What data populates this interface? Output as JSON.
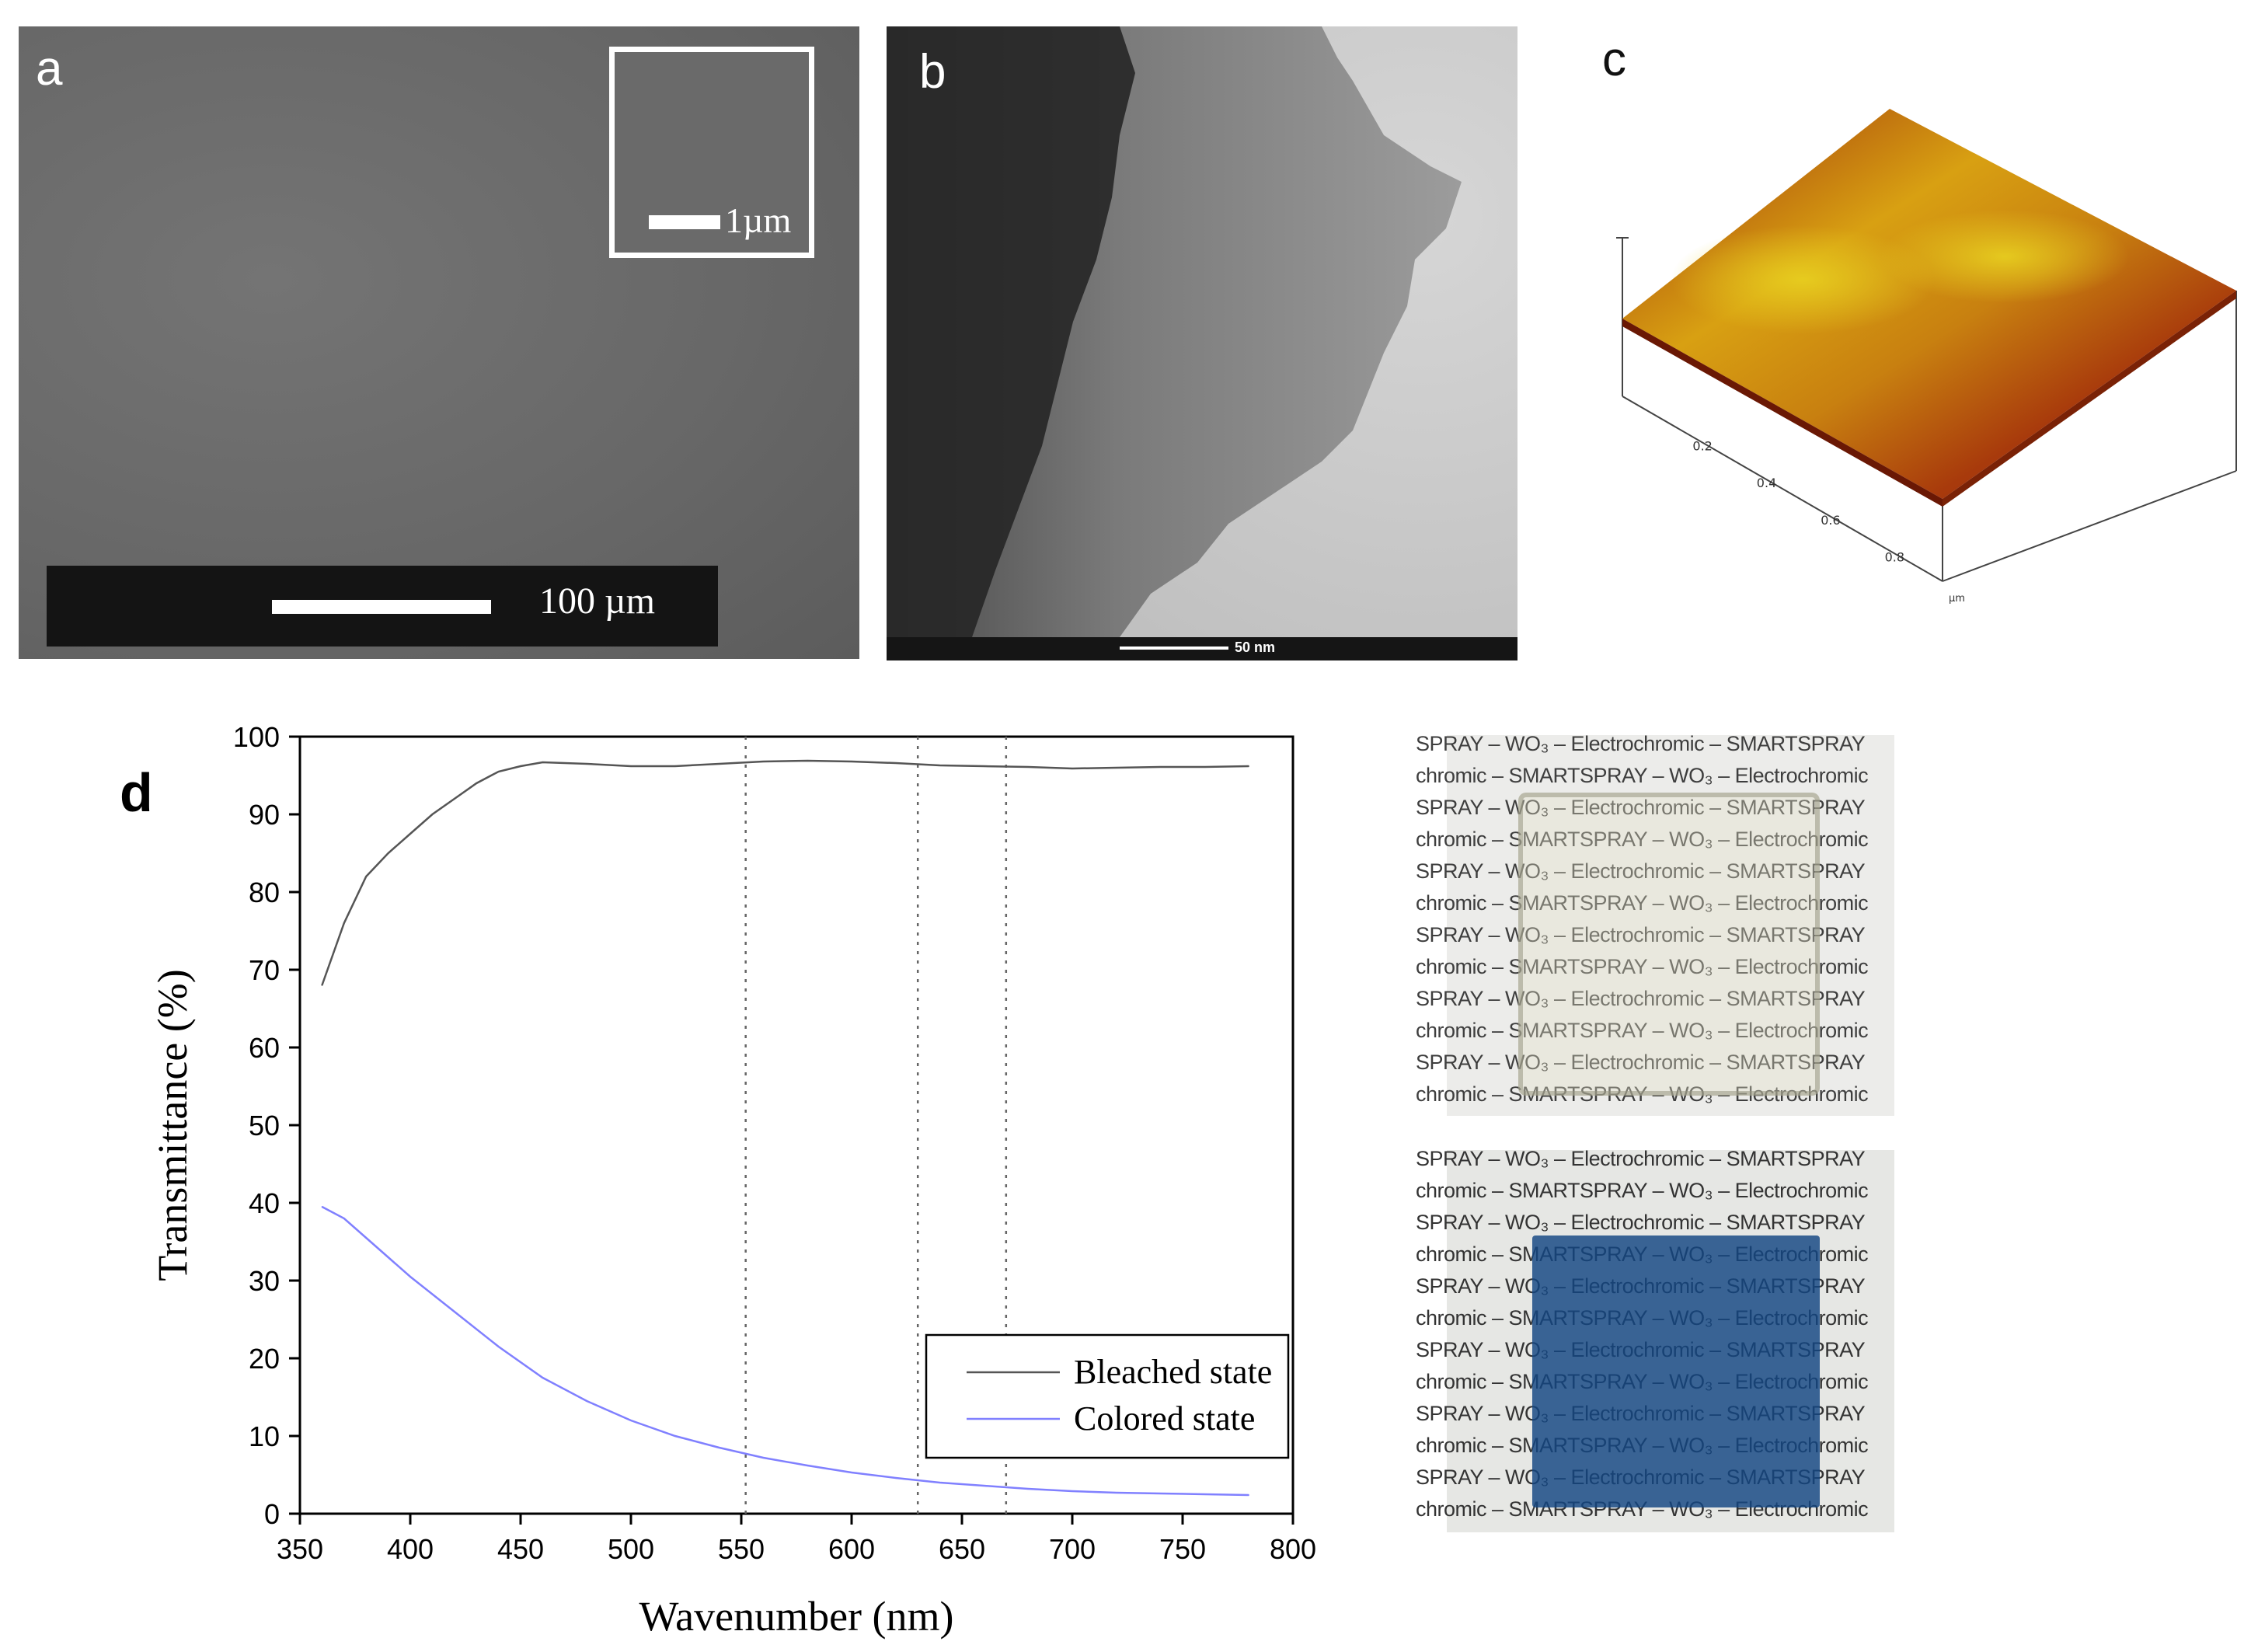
{
  "panels": {
    "a": {
      "label": "a",
      "inset_scale": "1µm",
      "scale": "100 µm"
    },
    "b": {
      "label": "b",
      "scale": "50 nm"
    },
    "c": {
      "label": "c",
      "axis_ticks": [
        "0.2",
        "0.4",
        "0.6",
        "0.8"
      ],
      "axis_unit": "µm"
    },
    "d": {
      "label": "d"
    }
  },
  "colors": {
    "bleached": "#555555",
    "colored": "#8080ff",
    "film_colored": "#1a4f8c"
  },
  "photo": {
    "rows": [
      "SPRAY – WO₃ – Electrochromic – SMARTSPRAY",
      "chromic – SMARTSPRAY – WO₃ – Electrochromic",
      "SPRAY – WO₃ – Electrochromic – SMARTSPRAY",
      "chromic – SMARTSPRAY – WO₃ – Electrochromic",
      "SPRAY – WO₃ – Electrochromic – SMARTSPRAY",
      "chromic – SMARTSPRAY – WO₃ – Electrochromic",
      "SPRAY – WO₃ – Electrochromic – SMARTSPRAY",
      "chromic – SMARTSPRAY – WO₃ – Electrochromic",
      "SPRAY – WO₃ – Electrochromic – SMARTSPRAY",
      "chromic – SMARTSPRAY – WO₃ – Electrochromic",
      "SPRAY – WO₃ – Electrochromic – SMARTSPRAY",
      "chromic – SMARTSPRAY – WO₃ – Electrochromic"
    ]
  },
  "chart_data": {
    "type": "line",
    "title": "",
    "xlabel": "Wavenumber (nm)",
    "ylabel": "Transmittance (%)",
    "xlim": [
      350,
      800
    ],
    "ylim": [
      0,
      100
    ],
    "xticks": [
      350,
      400,
      450,
      500,
      550,
      600,
      650,
      700,
      750,
      800
    ],
    "yticks": [
      0,
      10,
      20,
      30,
      40,
      50,
      60,
      70,
      80,
      90,
      100
    ],
    "reference_lines_x": [
      552,
      630,
      670
    ],
    "legend_position": "bottom-right",
    "series": [
      {
        "name": "Bleached state",
        "x": [
          360,
          370,
          380,
          390,
          400,
          410,
          420,
          430,
          440,
          450,
          460,
          480,
          500,
          520,
          540,
          560,
          580,
          600,
          620,
          640,
          660,
          680,
          700,
          720,
          740,
          760,
          780
        ],
        "y": [
          68,
          76,
          82,
          85,
          87.5,
          90,
          92,
          94,
          95.5,
          96.2,
          96.7,
          96.5,
          96.2,
          96.2,
          96.5,
          96.8,
          96.9,
          96.8,
          96.6,
          96.3,
          96.2,
          96.1,
          95.9,
          96.0,
          96.1,
          96.1,
          96.2
        ]
      },
      {
        "name": "Colored state",
        "x": [
          360,
          370,
          380,
          390,
          400,
          420,
          440,
          460,
          480,
          500,
          520,
          540,
          560,
          580,
          600,
          620,
          640,
          660,
          680,
          700,
          720,
          740,
          760,
          780
        ],
        "y": [
          39.5,
          38,
          35.5,
          33,
          30.5,
          26,
          21.5,
          17.5,
          14.5,
          12,
          10,
          8.5,
          7.2,
          6.2,
          5.3,
          4.6,
          4.0,
          3.6,
          3.2,
          2.9,
          2.7,
          2.6,
          2.5,
          2.4
        ]
      }
    ]
  }
}
